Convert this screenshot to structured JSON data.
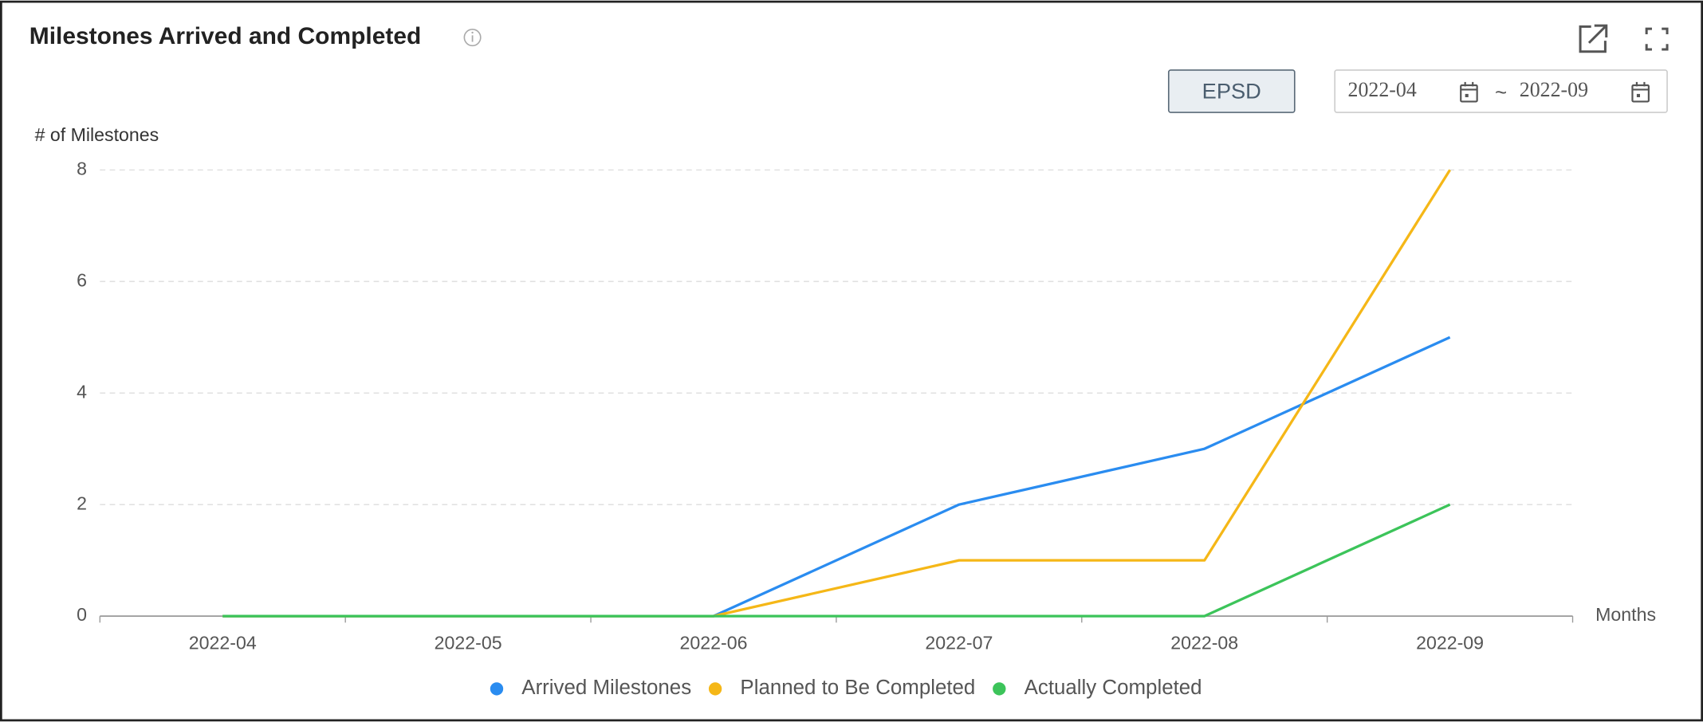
{
  "chart_data": {
    "type": "line",
    "title": "Milestones Arrived and Completed",
    "y_label": "# of Milestones",
    "x_label": "Months",
    "categories": [
      "2022-04",
      "2022-05",
      "2022-06",
      "2022-07",
      "2022-08",
      "2022-09"
    ],
    "series": [
      {
        "name": "Arrived Milestones",
        "color": "#2a8cf0",
        "values": [
          0,
          0,
          0,
          2,
          3,
          5
        ]
      },
      {
        "name": "Planned to Be Completed",
        "color": "#f5b717",
        "values": [
          0,
          0,
          0,
          1,
          1,
          8
        ]
      },
      {
        "name": "Actually Completed",
        "color": "#3cc45a",
        "values": [
          0,
          0,
          0,
          0,
          0,
          2
        ]
      }
    ],
    "ylim": [
      0,
      8
    ],
    "yticks": [
      0,
      2,
      4,
      6,
      8
    ],
    "grid": true,
    "legend": "bottom"
  },
  "controls": {
    "button": "EPSD",
    "date_start": "2022-04",
    "separator": "~",
    "date_end": "2022-09"
  }
}
